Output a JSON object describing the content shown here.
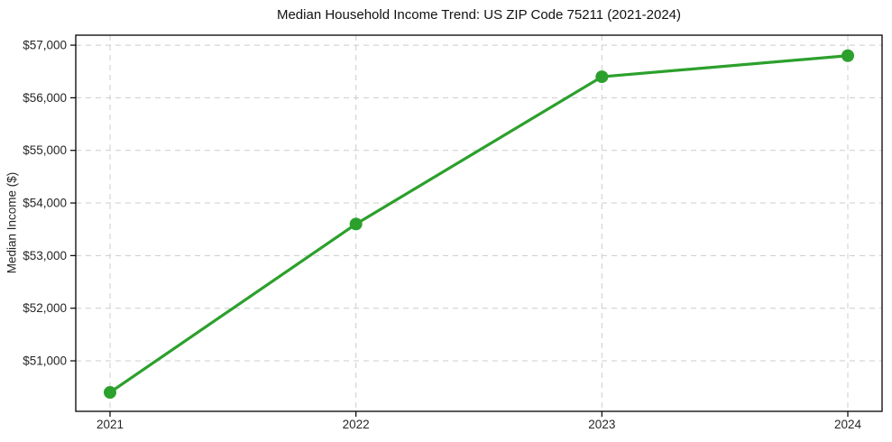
{
  "chart_data": {
    "type": "line",
    "title": "Median Household Income Trend: US ZIP Code 75211 (2021-2024)",
    "xlabel": "",
    "ylabel": "Median Income ($)",
    "categories": [
      "2021",
      "2022",
      "2023",
      "2024"
    ],
    "series": [
      {
        "name": "Median Household Income",
        "values": [
          50400,
          53600,
          56400,
          56800
        ]
      }
    ],
    "ylim": [
      50040,
      57190
    ],
    "yticks": {
      "values": [
        51000,
        52000,
        53000,
        54000,
        55000,
        56000,
        57000
      ],
      "labels": [
        "$51,000",
        "$52,000",
        "$53,000",
        "$54,000",
        "$55,000",
        "$56,000",
        "$57,000"
      ]
    },
    "grid": true,
    "legend_position": "none",
    "line_color": "#2ca02c",
    "marker": "circle"
  }
}
